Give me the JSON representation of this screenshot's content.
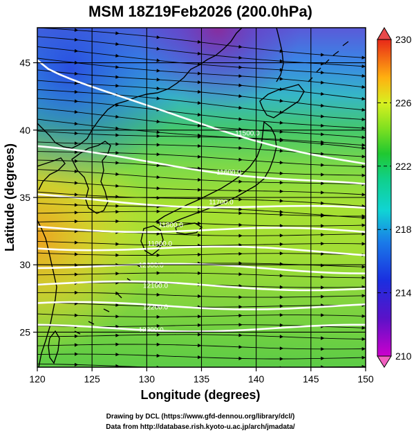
{
  "chart_data": {
    "type": "heatmap",
    "title": "MSM 18Z19Feb2026 (200.0hPa)",
    "xlabel": "Longitude (degrees)",
    "ylabel": "Latitude  (degrees)",
    "xlim": [
      120,
      150
    ],
    "ylim": [
      22.4,
      47.6
    ],
    "x_ticks": [
      "120",
      "125",
      "130",
      "135",
      "140",
      "145",
      "150"
    ],
    "y_ticks": [
      "25",
      "30",
      "35",
      "40",
      "45"
    ],
    "colorbar": {
      "min": 210,
      "max": 230,
      "ticks": [
        "210",
        "214",
        "218",
        "222",
        "226",
        "230"
      ],
      "extend": "both"
    },
    "contours": [
      {
        "level": "11500.0",
        "lat_at_120": 45.2,
        "lat_at_150": 37.5
      },
      {
        "level": "11600.0",
        "lat_at_120": 38.6,
        "lat_at_150": 35.8
      },
      {
        "level": "11700.0",
        "lat_at_120": 35.0,
        "lat_at_150": 34.0
      },
      {
        "level": "11800.0",
        "lat_at_120": 32.8,
        "lat_at_150": 32.4
      },
      {
        "level": "11900.0",
        "lat_at_120": 31.4,
        "lat_at_150": 30.9
      },
      {
        "level": "12000.0",
        "lat_at_120": 30.0,
        "lat_at_150": 29.6
      },
      {
        "level": "12100.0",
        "lat_at_120": 28.6,
        "lat_at_150": 28.3
      },
      {
        "level": "12200.0",
        "lat_at_120": 27.0,
        "lat_at_150": 26.9
      },
      {
        "level": "12300.0",
        "lat_at_120": 25.3,
        "lat_at_150": 25.3
      }
    ],
    "contour_labels": [
      {
        "text": "11500.0",
        "lon": 139.2,
        "lat": 39.8
      },
      {
        "text": "11600.0",
        "lon": 137.5,
        "lat": 36.9
      },
      {
        "text": "11700.0",
        "lon": 136.8,
        "lat": 34.7
      },
      {
        "text": "11800.0",
        "lon": 132.2,
        "lat": 33.0
      },
      {
        "text": "11900.0",
        "lon": 131.2,
        "lat": 31.6
      },
      {
        "text": "12000.0",
        "lon": 130.4,
        "lat": 30.0
      },
      {
        "text": "12100.0",
        "lon": 130.8,
        "lat": 28.5
      },
      {
        "text": "12200.0",
        "lon": 130.8,
        "lat": 26.9
      },
      {
        "text": "12300.0",
        "lon": 130.4,
        "lat": 25.2
      }
    ]
  },
  "credits": {
    "line1": "Drawing by DCL (https://www.gfd-dennou.org/library/dcl/)",
    "line2": "Data from http://database.rish.kyoto-u.ac.jp/arch/jmadata/"
  }
}
